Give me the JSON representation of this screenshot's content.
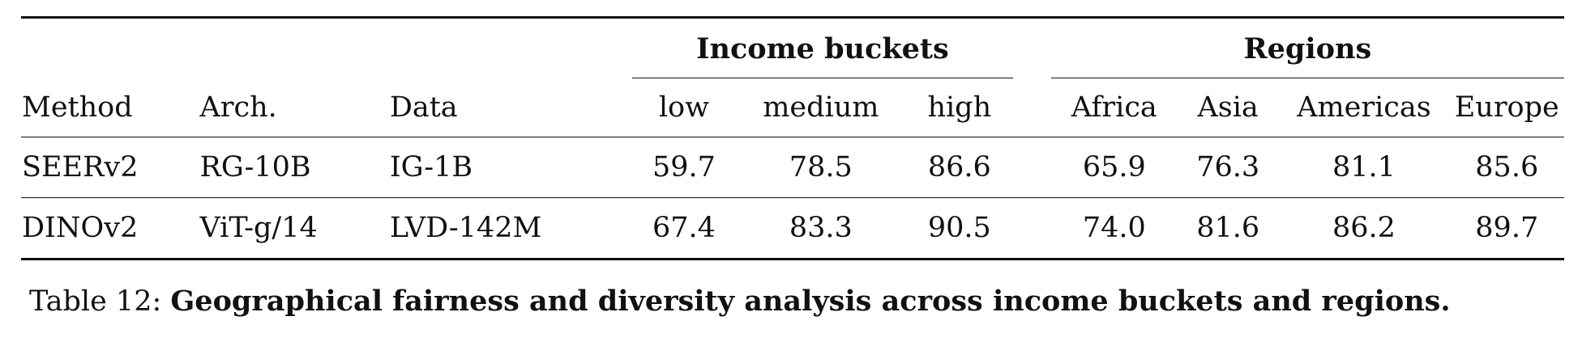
{
  "table": {
    "group_headers": {
      "income": "Income buckets",
      "regions": "Regions"
    },
    "columns": [
      "Method",
      "Arch.",
      "Data",
      "low",
      "medium",
      "high",
      "Africa",
      "Asia",
      "Americas",
      "Europe"
    ],
    "rows": [
      [
        "SEERv2",
        "RG-10B",
        "IG-1B",
        "59.7",
        "78.5",
        "86.6",
        "65.9",
        "76.3",
        "81.1",
        "85.6"
      ],
      [
        "DINOv2",
        "ViT-g/14",
        "LVD-142M",
        "67.4",
        "83.3",
        "90.5",
        "74.0",
        "81.6",
        "86.2",
        "89.7"
      ]
    ]
  },
  "caption": {
    "label": "Table 12:",
    "text": "Geographical fairness and diversity analysis across income buckets and regions."
  }
}
